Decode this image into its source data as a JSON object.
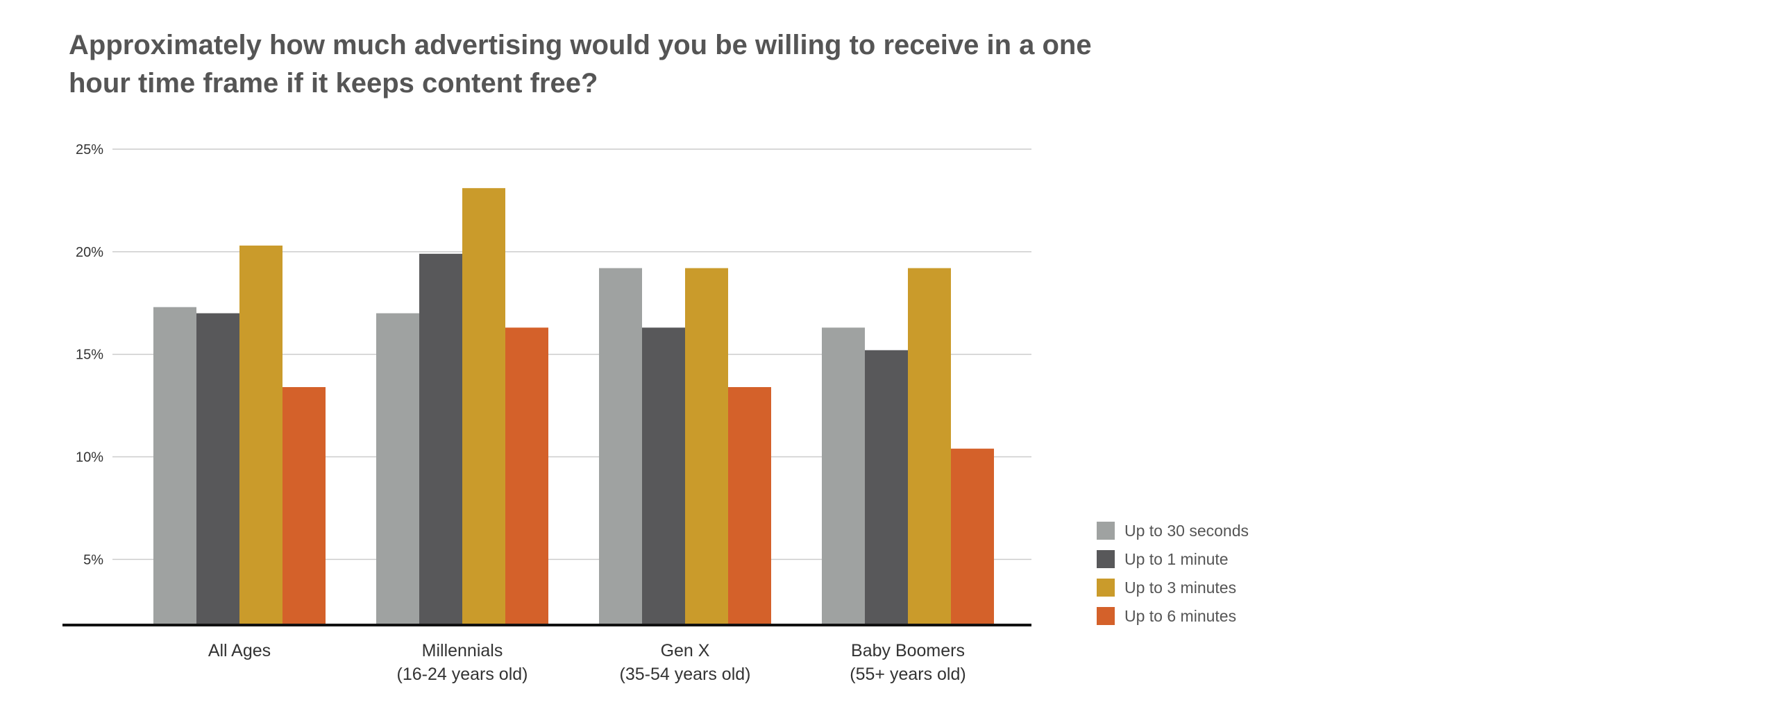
{
  "chart_data": {
    "type": "bar",
    "title": "Approximately how much advertising would you be willing to receive in a one hour time frame if it keeps content free?",
    "title_lines": [
      "Approximately how much advertising would you be willing to receive in a one",
      "hour time frame if it keeps content free?"
    ],
    "categories": [
      [
        "All Ages"
      ],
      [
        "Millennials",
        "(16-24 years old)"
      ],
      [
        "Gen X",
        "(35-54 years old)"
      ],
      [
        "Baby Boomers",
        "(55+ years old)"
      ]
    ],
    "series": [
      {
        "name": "Up to 30 seconds",
        "color": "#9fa2a1",
        "values": [
          17.3,
          17.0,
          19.2,
          16.3
        ]
      },
      {
        "name": "Up to 1 minute",
        "color": "#58585a",
        "values": [
          17.0,
          19.9,
          16.3,
          15.2
        ]
      },
      {
        "name": "Up to 3 minutes",
        "color": "#ca9b2b",
        "values": [
          20.3,
          23.1,
          19.2,
          19.2
        ]
      },
      {
        "name": "Up to 6 minutes",
        "color": "#d4612a",
        "values": [
          13.4,
          16.3,
          13.4,
          10.4
        ]
      }
    ],
    "y_ticks": [
      5,
      10,
      15,
      20,
      25
    ],
    "y_tick_labels": [
      "5%",
      "10%",
      "15%",
      "20%",
      "25%"
    ],
    "ylim": [
      1.8,
      25
    ],
    "grid": true,
    "legend_position": "bottom-right"
  }
}
